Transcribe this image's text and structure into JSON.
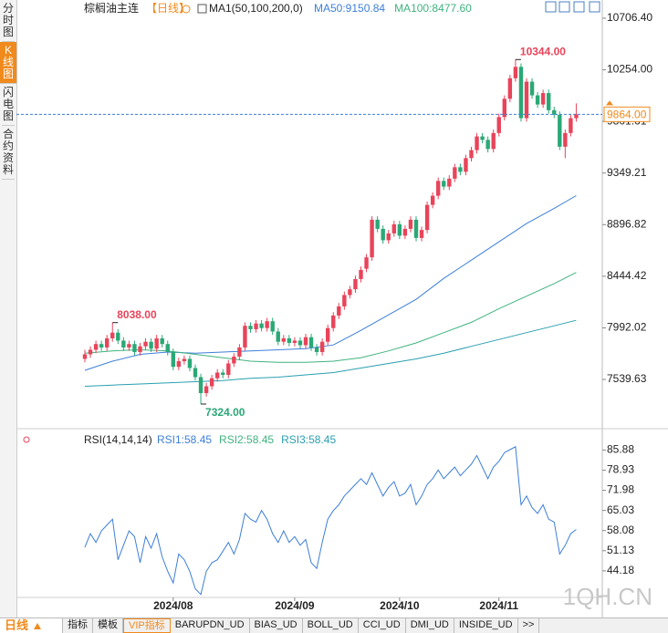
{
  "sidebar": [
    "分时图",
    "K线图",
    "闪电图",
    "合约资料"
  ],
  "header": {
    "symbol": "棕榈油主连",
    "period": "【日线】",
    "ma_label": "MA1(50,100,200,0)"
  },
  "chart_data": [
    {
      "type": "candlestick",
      "up_color": "#e8445a",
      "down_color": "#2aa876",
      "ylim": [
        7148,
        10826
      ],
      "yticks": [
        {
          "value": 7539.63,
          "label": "7539.63"
        },
        {
          "value": 7992.02,
          "label": "7992.02"
        },
        {
          "value": 8444.42,
          "label": "8444.42"
        },
        {
          "value": 8896.82,
          "label": "8896.82"
        },
        {
          "value": 9349.21,
          "label": "9349.21"
        },
        {
          "value": 9801.61,
          "label": "9801.61"
        },
        {
          "value": 10254,
          "label": "10254.00"
        },
        {
          "value": 10706.4,
          "label": "10706.40"
        }
      ],
      "candles": [
        [
          7720,
          7800,
          7690,
          7760
        ],
        [
          7760,
          7830,
          7730,
          7800
        ],
        [
          7800,
          7880,
          7770,
          7850
        ],
        [
          7850,
          7880,
          7790,
          7820
        ],
        [
          7820,
          7930,
          7790,
          7900
        ],
        [
          7900,
          8038,
          7870,
          7950
        ],
        [
          7950,
          7980,
          7850,
          7880
        ],
        [
          7880,
          7910,
          7790,
          7820
        ],
        [
          7820,
          7880,
          7790,
          7850
        ],
        [
          7850,
          7880,
          7750,
          7780
        ],
        [
          7780,
          7860,
          7750,
          7830
        ],
        [
          7830,
          7900,
          7800,
          7870
        ],
        [
          7870,
          7900,
          7780,
          7810
        ],
        [
          7810,
          7930,
          7780,
          7900
        ],
        [
          7900,
          7930,
          7820,
          7850
        ],
        [
          7850,
          7880,
          7750,
          7780
        ],
        [
          7780,
          7810,
          7620,
          7650
        ],
        [
          7650,
          7730,
          7620,
          7700
        ],
        [
          7700,
          7750,
          7670,
          7720
        ],
        [
          7720,
          7750,
          7610,
          7640
        ],
        [
          7640,
          7670,
          7530,
          7560
        ],
        [
          7560,
          7590,
          7324,
          7420
        ],
        [
          7420,
          7510,
          7390,
          7480
        ],
        [
          7480,
          7580,
          7450,
          7550
        ],
        [
          7550,
          7630,
          7520,
          7600
        ],
        [
          7600,
          7630,
          7550,
          7580
        ],
        [
          7580,
          7710,
          7550,
          7680
        ],
        [
          7680,
          7770,
          7650,
          7740
        ],
        [
          7740,
          7850,
          7710,
          7820
        ],
        [
          7820,
          8040,
          7790,
          8010
        ],
        [
          8010,
          8040,
          7950,
          7980
        ],
        [
          7980,
          8060,
          7950,
          8030
        ],
        [
          8030,
          8060,
          7960,
          7990
        ],
        [
          7990,
          8080,
          7960,
          8050
        ],
        [
          8050,
          8080,
          7930,
          7960
        ],
        [
          7960,
          7990,
          7840,
          7870
        ],
        [
          7870,
          7930,
          7840,
          7900
        ],
        [
          7900,
          7930,
          7830,
          7860
        ],
        [
          7860,
          7910,
          7830,
          7880
        ],
        [
          7880,
          7910,
          7810,
          7840
        ],
        [
          7840,
          7940,
          7810,
          7910
        ],
        [
          7910,
          7940,
          7790,
          7820
        ],
        [
          7820,
          7850,
          7750,
          7780
        ],
        [
          7780,
          7900,
          7750,
          7870
        ],
        [
          7870,
          8020,
          7840,
          7990
        ],
        [
          7990,
          8130,
          7960,
          8100
        ],
        [
          8100,
          8210,
          8070,
          8180
        ],
        [
          8180,
          8310,
          8150,
          8280
        ],
        [
          8280,
          8360,
          8250,
          8330
        ],
        [
          8330,
          8450,
          8300,
          8420
        ],
        [
          8420,
          8530,
          8390,
          8500
        ],
        [
          8510,
          8640,
          8480,
          8610
        ],
        [
          8610,
          8970,
          8580,
          8940
        ],
        [
          8940,
          8970,
          8830,
          8860
        ],
        [
          8860,
          8890,
          8730,
          8760
        ],
        [
          8760,
          8850,
          8730,
          8820
        ],
        [
          8820,
          8930,
          8790,
          8900
        ],
        [
          8900,
          8930,
          8770,
          8800
        ],
        [
          8800,
          8890,
          8770,
          8860
        ],
        [
          8860,
          8970,
          8830,
          8940
        ],
        [
          8940,
          8970,
          8750,
          8780
        ],
        [
          8780,
          8880,
          8750,
          8850
        ],
        [
          8850,
          9100,
          8820,
          9070
        ],
        [
          9070,
          9180,
          9040,
          9150
        ],
        [
          9150,
          9310,
          9120,
          9280
        ],
        [
          9280,
          9310,
          9200,
          9230
        ],
        [
          9230,
          9330,
          9200,
          9300
        ],
        [
          9300,
          9430,
          9270,
          9400
        ],
        [
          9400,
          9430,
          9330,
          9360
        ],
        [
          9360,
          9510,
          9330,
          9480
        ],
        [
          9480,
          9580,
          9450,
          9550
        ],
        [
          9550,
          9700,
          9520,
          9670
        ],
        [
          9670,
          9700,
          9610,
          9640
        ],
        [
          9640,
          9670,
          9530,
          9560
        ],
        [
          9560,
          9730,
          9530,
          9700
        ],
        [
          9700,
          9870,
          9670,
          9840
        ],
        [
          9840,
          10030,
          9810,
          10000
        ],
        [
          10000,
          10210,
          9970,
          10180
        ],
        [
          10180,
          10344,
          10150,
          10280
        ],
        [
          10280,
          10310,
          9800,
          9830
        ],
        [
          9830,
          10180,
          9800,
          10150
        ],
        [
          10150,
          10180,
          10000,
          10030
        ],
        [
          10030,
          10060,
          9920,
          9950
        ],
        [
          9950,
          10080,
          9920,
          10050
        ],
        [
          10050,
          10080,
          9870,
          9900
        ],
        [
          9900,
          9930,
          9830,
          9860
        ],
        [
          9860,
          9890,
          9550,
          9580
        ],
        [
          9580,
          9730,
          9480,
          9700
        ],
        [
          9700,
          9860,
          9670,
          9830
        ],
        [
          9830,
          9960,
          9800,
          9864
        ]
      ],
      "ma": [
        {
          "name": "MA50:9150.84",
          "color": "#3d7fd9",
          "x": [
            0,
            5,
            10,
            15,
            20,
            25,
            30,
            35,
            40,
            45,
            50,
            55,
            60,
            65,
            70,
            75,
            80,
            85,
            89
          ],
          "values": [
            7620,
            7700,
            7760,
            7780,
            7770,
            7780,
            7790,
            7800,
            7810,
            7842,
            7970,
            8106,
            8242,
            8426,
            8586,
            8746,
            8906,
            9040,
            9150.84
          ]
        },
        {
          "name": "MA100:8477.60",
          "color": "#3fb37f",
          "x": [
            0,
            5,
            10,
            15,
            20,
            25,
            30,
            35,
            40,
            45,
            50,
            55,
            60,
            65,
            70,
            75,
            80,
            85,
            89
          ],
          "values": [
            7770,
            7790,
            7800,
            7790,
            7760,
            7730,
            7700,
            7690,
            7690,
            7700,
            7730,
            7790,
            7860,
            7950,
            8040,
            8160,
            8270,
            8380,
            8477.6
          ]
        },
        {
          "color": "#2a9fb0",
          "x": [
            0,
            5,
            10,
            15,
            20,
            25,
            30,
            35,
            40,
            45,
            50,
            55,
            60,
            65,
            70,
            75,
            80,
            85,
            89
          ],
          "values": [
            7480,
            7490,
            7500,
            7510,
            7520,
            7530,
            7550,
            7560,
            7580,
            7600,
            7640,
            7680,
            7720,
            7770,
            7830,
            7890,
            7950,
            8010,
            8058
          ]
        }
      ],
      "last": {
        "value": 9864,
        "label": "9864.00"
      },
      "annotations": {
        "high": {
          "value": 10344,
          "label": "10344.00"
        },
        "low": {
          "value": 7324,
          "label": "7324.00"
        },
        "local_high": {
          "value": 8038,
          "label": "8038.00"
        }
      }
    },
    {
      "type": "line",
      "title": "RSI(14,14,14)",
      "ylim": [
        35,
        90.1
      ],
      "yticks": [
        44.18,
        51.13,
        58.08,
        65.03,
        71.98,
        78.93,
        85.88
      ],
      "legend": [
        {
          "text": "RSI1:58.45",
          "color": "#3d7fd9"
        },
        {
          "text": "RSI2:58.45",
          "color": "#3fb37f"
        },
        {
          "text": "RSI3:58.45",
          "color": "#2a9fb0"
        }
      ],
      "xticks": [
        {
          "value": 16,
          "label": "2024/08"
        },
        {
          "value": 38,
          "label": "2024/09"
        },
        {
          "value": 57,
          "label": "2024/10"
        },
        {
          "value": 75,
          "label": "2024/11"
        }
      ],
      "series": [
        {
          "name": "RSI1",
          "color": "#3d7fd9",
          "values": [
            52.3,
            57,
            54,
            58,
            60,
            62,
            48,
            53,
            58,
            56,
            47,
            56,
            52,
            57,
            49,
            44,
            40,
            50,
            48,
            44,
            38,
            36,
            44,
            47,
            48,
            51,
            54,
            50,
            55,
            64,
            62,
            61,
            65,
            62,
            57,
            54,
            58,
            54,
            56,
            53,
            55,
            47,
            45,
            54,
            62,
            65,
            67,
            70,
            72,
            74,
            76,
            74,
            78,
            74,
            70,
            73,
            75,
            70,
            71,
            74,
            67,
            70,
            74,
            76,
            79,
            76,
            78,
            80,
            77,
            79,
            81,
            84,
            80,
            76,
            80,
            82,
            85,
            86,
            87,
            67,
            70,
            66,
            64,
            67,
            62,
            61,
            50,
            53,
            57,
            58.45
          ]
        }
      ]
    }
  ],
  "footer": {
    "period": "日线",
    "tabs": [
      "指标",
      "模板",
      "VIP指标",
      "BARUPDN_UD",
      "BIAS_UD",
      "BOLL_UD",
      "CCI_UD",
      "DMI_UD",
      "INSIDE_UD",
      ">>"
    ],
    "watermark": "1QH.CN"
  }
}
